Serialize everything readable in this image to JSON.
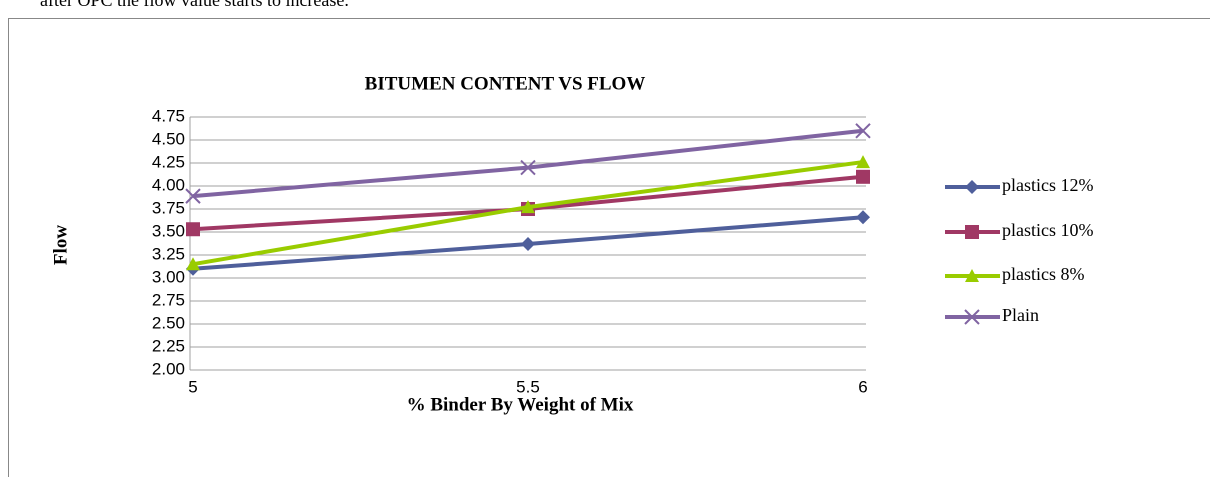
{
  "caption_text": "after OPC the flow value starts to increase.",
  "chart_data": {
    "type": "line",
    "title": "BITUMEN CONTENT VS FLOW",
    "x_label": "% Binder By Weight of Mix",
    "y_label": "Flow",
    "x": [
      5,
      5.5,
      6
    ],
    "xlim": [
      5,
      6
    ],
    "xticks": [
      5,
      5.5,
      6
    ],
    "ylim": [
      2,
      4.75
    ],
    "yticks": [
      {
        "value": 2,
        "label": "2.00"
      },
      2.25,
      {
        "value": 2.5,
        "label": "2.50"
      },
      2.75,
      {
        "value": 3,
        "label": "3.00"
      },
      3.25,
      {
        "value": 3.5,
        "label": "3.50"
      },
      3.75,
      {
        "value": 4,
        "label": "4.00"
      },
      4.25,
      {
        "value": 4.5,
        "label": "4.50"
      },
      4.75
    ],
    "grid": true,
    "legend": "right",
    "series": [
      {
        "name": "plastics 12%",
        "color": "#4f5f9b",
        "marker": "diamond",
        "values": [
          3.1,
          3.37,
          3.66
        ]
      },
      {
        "name": "plastics 10%",
        "color": "#a03864",
        "marker": "square",
        "values": [
          3.53,
          3.75,
          4.1
        ]
      },
      {
        "name": "plastics 8%",
        "color": "#99cc00",
        "marker": "triangle",
        "values": [
          3.15,
          3.77,
          4.26
        ]
      },
      {
        "name": "Plain",
        "color": "#8064a2",
        "marker": "x",
        "values": [
          3.89,
          4.2,
          4.6
        ]
      }
    ]
  }
}
